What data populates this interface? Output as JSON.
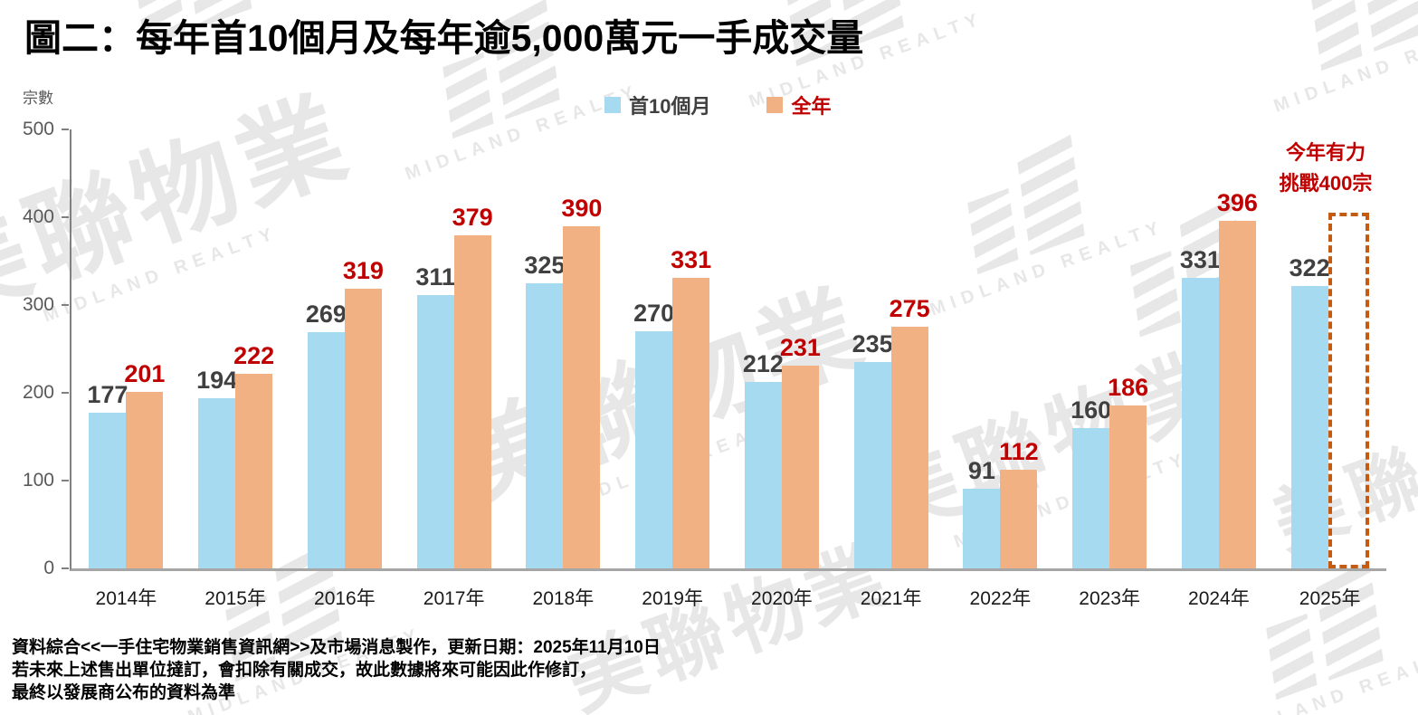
{
  "title": "圖二：每年首10個月及每年逾5,000萬元一手成交量",
  "y_axis_title": "宗數",
  "legend": {
    "first10": {
      "label": "首10個月",
      "swatch_color": "#a5daf0",
      "text_color": "#404040"
    },
    "full_year": {
      "label": "全年",
      "swatch_color": "#f2b183",
      "text_color": "#c00000"
    }
  },
  "annotation": {
    "line1": "今年有力",
    "line2": "挑戰400宗",
    "color": "#c00000"
  },
  "watermark": {
    "cn": "美聯物業",
    "en": "MIDLAND REALTY"
  },
  "footer": {
    "line1": "資料綜合<<一手住宅物業銷售資訊網>>及市場消息製作，更新日期：2025年11月10日",
    "line2": "若未來上述售出單位撻訂，會扣除有關成交，故此數據將來可能因此作修訂，",
    "line3": "最終以發展商公布的資料為準"
  },
  "chart_data": {
    "type": "bar",
    "title": "圖二：每年首10個月及每年逾5,000萬元一手成交量",
    "ylabel": "宗數",
    "ylim": [
      0,
      500
    ],
    "yticks": [
      0,
      100,
      200,
      300,
      400,
      500
    ],
    "grid": false,
    "legend_position": "top-center",
    "categories": [
      "2014年",
      "2015年",
      "2016年",
      "2017年",
      "2018年",
      "2019年",
      "2020年",
      "2021年",
      "2022年",
      "2023年",
      "2024年",
      "2025年"
    ],
    "series": [
      {
        "name": "首10個月",
        "color": "#a5daf0",
        "label_color": "#404040",
        "values": [
          177,
          194,
          269,
          311,
          325,
          270,
          212,
          235,
          91,
          160,
          331,
          322
        ]
      },
      {
        "name": "全年",
        "color": "#f2b183",
        "label_color": "#c00000",
        "values": [
          201,
          222,
          319,
          379,
          390,
          331,
          231,
          275,
          112,
          186,
          396,
          null
        ]
      }
    ],
    "target_box": {
      "category": "2025年",
      "top_value": 405,
      "border_color": "#c55a11",
      "note": "今年有力挑戰400宗"
    }
  }
}
